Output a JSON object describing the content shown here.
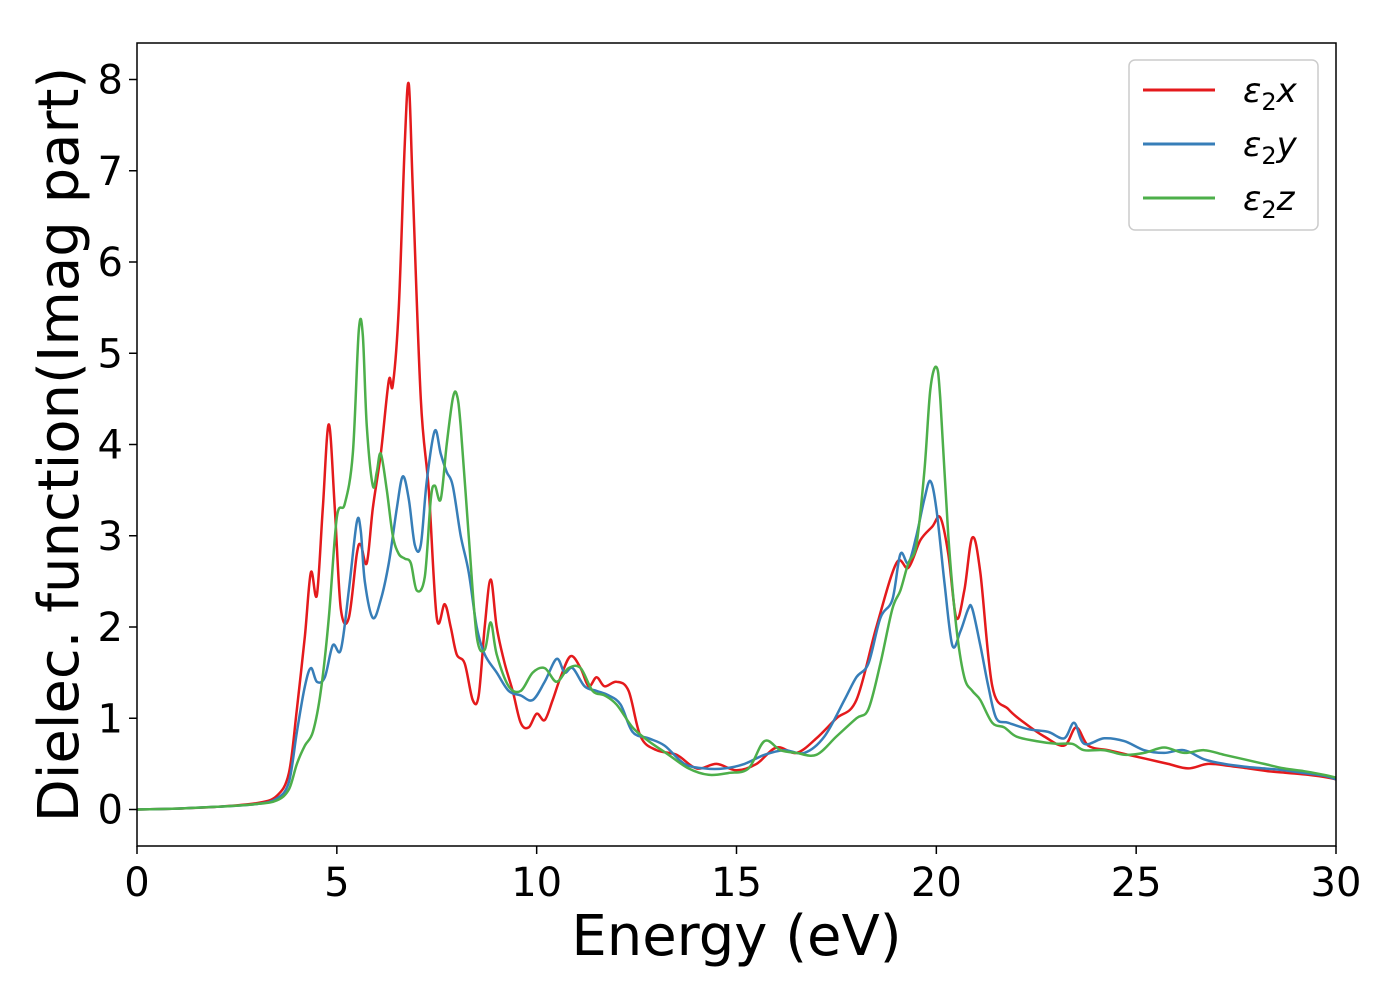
{
  "chart_data": {
    "type": "line",
    "title": "",
    "xlabel": "Energy (eV)",
    "ylabel": "Dielec. function(Imag part)",
    "xlim": [
      0,
      30
    ],
    "ylim": [
      -0.4,
      8.4
    ],
    "xticks": [
      0,
      5,
      10,
      15,
      20,
      25,
      30
    ],
    "yticks": [
      0,
      1,
      2,
      3,
      4,
      5,
      6,
      7,
      8
    ],
    "grid": false,
    "legend_position": "top-right",
    "series": [
      {
        "name": "ε₂x",
        "legend_base": "ε",
        "legend_sub": "2",
        "legend_tail": "x",
        "color": "#e41a1c",
        "x": [
          0,
          1,
          2,
          3,
          3.5,
          3.8,
          4.0,
          4.2,
          4.35,
          4.5,
          4.65,
          4.8,
          4.95,
          5.1,
          5.3,
          5.5,
          5.6,
          5.75,
          5.9,
          6.1,
          6.3,
          6.4,
          6.55,
          6.7,
          6.8,
          6.9,
          7.1,
          7.3,
          7.5,
          7.7,
          7.85,
          8.0,
          8.2,
          8.4,
          8.55,
          8.7,
          8.85,
          9.0,
          9.2,
          9.4,
          9.6,
          9.8,
          10.0,
          10.2,
          10.4,
          10.6,
          10.85,
          11.1,
          11.3,
          11.5,
          11.7,
          12.0,
          12.3,
          12.6,
          13.0,
          13.5,
          14.0,
          14.5,
          15.0,
          15.5,
          16.0,
          16.5,
          17.0,
          17.5,
          18.0,
          18.5,
          19.0,
          19.3,
          19.6,
          19.9,
          20.1,
          20.3,
          20.5,
          20.7,
          20.9,
          21.1,
          21.4,
          21.8,
          22.2,
          22.7,
          23.2,
          23.5,
          23.8,
          24.3,
          24.8,
          25.3,
          25.8,
          26.3,
          26.8,
          27.3,
          27.8,
          28.3,
          28.8,
          29.3,
          29.8,
          30
        ],
        "y": [
          0.0,
          0.01,
          0.03,
          0.07,
          0.15,
          0.4,
          1.1,
          1.9,
          2.6,
          2.35,
          3.3,
          4.22,
          3.3,
          2.2,
          2.1,
          2.8,
          2.9,
          2.7,
          3.3,
          3.9,
          4.7,
          4.65,
          5.5,
          7.3,
          7.95,
          6.8,
          4.5,
          3.5,
          2.1,
          2.25,
          2.0,
          1.7,
          1.6,
          1.2,
          1.25,
          2.0,
          2.52,
          2.0,
          1.6,
          1.3,
          0.95,
          0.9,
          1.05,
          0.98,
          1.2,
          1.45,
          1.68,
          1.55,
          1.35,
          1.45,
          1.35,
          1.4,
          1.3,
          0.8,
          0.65,
          0.6,
          0.45,
          0.5,
          0.43,
          0.5,
          0.68,
          0.62,
          0.78,
          1.0,
          1.2,
          2.0,
          2.7,
          2.65,
          2.95,
          3.1,
          3.2,
          2.8,
          2.1,
          2.4,
          2.98,
          2.6,
          1.35,
          1.1,
          0.95,
          0.8,
          0.7,
          0.9,
          0.7,
          0.65,
          0.6,
          0.55,
          0.5,
          0.45,
          0.5,
          0.48,
          0.45,
          0.42,
          0.4,
          0.38,
          0.35,
          0.33
        ]
      },
      {
        "name": "ε₂y",
        "legend_base": "ε",
        "legend_sub": "2",
        "legend_tail": "y",
        "color": "#377eb8",
        "x": [
          0,
          1,
          2,
          3,
          3.5,
          3.8,
          4.0,
          4.2,
          4.35,
          4.5,
          4.7,
          4.9,
          5.1,
          5.3,
          5.5,
          5.6,
          5.7,
          5.9,
          6.1,
          6.3,
          6.5,
          6.65,
          6.8,
          6.95,
          7.1,
          7.25,
          7.45,
          7.6,
          7.75,
          7.9,
          8.1,
          8.3,
          8.5,
          8.7,
          9.0,
          9.3,
          9.6,
          9.9,
          10.2,
          10.5,
          10.7,
          10.9,
          11.2,
          11.5,
          11.8,
          12.1,
          12.4,
          12.8,
          13.2,
          13.7,
          14.2,
          14.7,
          15.2,
          15.7,
          16.2,
          16.7,
          17.2,
          17.7,
          18.0,
          18.3,
          18.6,
          18.9,
          19.1,
          19.3,
          19.5,
          19.7,
          19.85,
          20.0,
          20.2,
          20.4,
          20.6,
          20.8,
          20.9,
          21.1,
          21.3,
          21.5,
          21.8,
          22.3,
          22.8,
          23.2,
          23.45,
          23.7,
          24.2,
          24.7,
          25.2,
          25.7,
          26.2,
          26.7,
          27.2,
          27.7,
          28.2,
          28.7,
          29.2,
          29.7,
          30
        ],
        "y": [
          0.0,
          0.01,
          0.03,
          0.06,
          0.12,
          0.3,
          0.85,
          1.35,
          1.55,
          1.4,
          1.45,
          1.8,
          1.75,
          2.4,
          3.15,
          3.05,
          2.5,
          2.1,
          2.3,
          2.7,
          3.3,
          3.65,
          3.4,
          2.9,
          2.9,
          3.6,
          4.15,
          3.9,
          3.7,
          3.55,
          3.0,
          2.6,
          2.0,
          1.7,
          1.5,
          1.3,
          1.25,
          1.2,
          1.4,
          1.65,
          1.5,
          1.55,
          1.35,
          1.3,
          1.25,
          1.15,
          0.85,
          0.78,
          0.7,
          0.5,
          0.45,
          0.45,
          0.5,
          0.6,
          0.65,
          0.62,
          0.8,
          1.2,
          1.45,
          1.6,
          2.1,
          2.3,
          2.8,
          2.7,
          3.0,
          3.4,
          3.6,
          3.3,
          2.5,
          1.8,
          1.95,
          2.2,
          2.2,
          1.8,
          1.35,
          1.0,
          0.95,
          0.88,
          0.85,
          0.78,
          0.95,
          0.72,
          0.78,
          0.75,
          0.65,
          0.62,
          0.65,
          0.55,
          0.5,
          0.47,
          0.45,
          0.43,
          0.4,
          0.37,
          0.33
        ]
      },
      {
        "name": "ε₂z",
        "legend_base": "ε",
        "legend_sub": "2",
        "legend_tail": "z",
        "color": "#4daf4a",
        "x": [
          0,
          1,
          2,
          3,
          3.5,
          3.8,
          4.0,
          4.2,
          4.4,
          4.6,
          4.8,
          5.0,
          5.2,
          5.4,
          5.55,
          5.65,
          5.75,
          5.9,
          6.0,
          6.1,
          6.25,
          6.4,
          6.55,
          6.7,
          6.85,
          7.0,
          7.2,
          7.35,
          7.45,
          7.6,
          7.75,
          7.9,
          8.0,
          8.1,
          8.3,
          8.5,
          8.7,
          8.85,
          9.0,
          9.3,
          9.6,
          9.9,
          10.2,
          10.5,
          10.8,
          11.1,
          11.4,
          11.7,
          12.0,
          12.4,
          12.8,
          13.3,
          13.8,
          14.3,
          14.8,
          15.3,
          15.7,
          16.1,
          16.5,
          17.0,
          17.5,
          18.0,
          18.3,
          18.6,
          18.9,
          19.1,
          19.3,
          19.5,
          19.7,
          19.85,
          20.0,
          20.1,
          20.3,
          20.5,
          20.7,
          20.9,
          21.1,
          21.4,
          21.7,
          22.0,
          22.5,
          23.0,
          23.4,
          23.7,
          24.2,
          24.7,
          25.2,
          25.7,
          26.2,
          26.7,
          27.2,
          27.7,
          28.2,
          28.7,
          29.2,
          29.7,
          30
        ],
        "y": [
          0.0,
          0.01,
          0.03,
          0.06,
          0.1,
          0.22,
          0.5,
          0.7,
          0.85,
          1.3,
          2.1,
          3.2,
          3.35,
          3.9,
          5.25,
          5.2,
          4.2,
          3.55,
          3.7,
          3.9,
          3.5,
          3.0,
          2.8,
          2.75,
          2.7,
          2.4,
          2.55,
          3.4,
          3.55,
          3.4,
          4.0,
          4.5,
          4.55,
          4.2,
          3.0,
          1.9,
          1.75,
          2.05,
          1.7,
          1.35,
          1.3,
          1.5,
          1.55,
          1.4,
          1.55,
          1.55,
          1.3,
          1.25,
          1.15,
          0.9,
          0.75,
          0.6,
          0.45,
          0.38,
          0.4,
          0.45,
          0.75,
          0.65,
          0.62,
          0.6,
          0.8,
          1.0,
          1.1,
          1.6,
          2.2,
          2.4,
          2.7,
          2.9,
          3.7,
          4.6,
          4.85,
          4.5,
          3.0,
          2.0,
          1.45,
          1.3,
          1.2,
          0.95,
          0.9,
          0.8,
          0.75,
          0.72,
          0.72,
          0.65,
          0.65,
          0.6,
          0.62,
          0.68,
          0.62,
          0.65,
          0.6,
          0.55,
          0.5,
          0.45,
          0.42,
          0.38,
          0.35
        ]
      }
    ]
  }
}
